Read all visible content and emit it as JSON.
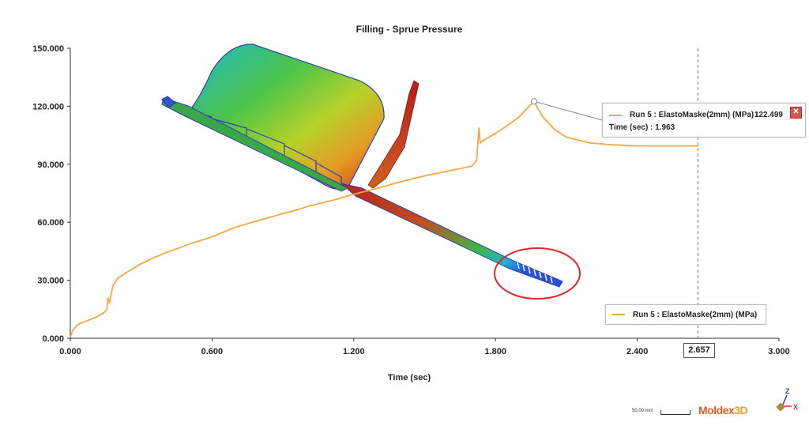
{
  "chart_data": {
    "type": "line",
    "title": "Filling - Sprue Pressure",
    "xlabel": "Time (sec)",
    "ylabel": "",
    "xlim": [
      0,
      3.0
    ],
    "ylim": [
      0,
      150
    ],
    "x_ticks": [
      "0.000",
      "0.600",
      "1.200",
      "1.800",
      "2.400",
      "3.000"
    ],
    "x_tick_values": [
      0,
      0.6,
      1.2,
      1.8,
      2.4,
      3.0
    ],
    "y_ticks": [
      "0.000",
      "30.000",
      "60.000",
      "90.000",
      "120.000",
      "150.000"
    ],
    "y_tick_values": [
      0,
      30,
      60,
      90,
      120,
      150
    ],
    "series": [
      {
        "name": "Run 5 : ElastoMaske(2mm) (MPa)",
        "color": "#f4a742",
        "x": [
          0.0,
          0.01,
          0.03,
          0.05,
          0.08,
          0.11,
          0.14,
          0.155,
          0.16,
          0.165,
          0.18,
          0.2,
          0.25,
          0.3,
          0.35,
          0.4,
          0.5,
          0.55,
          0.6,
          0.7,
          0.8,
          0.9,
          0.95,
          1.0,
          1.1,
          1.2,
          1.3,
          1.4,
          1.5,
          1.6,
          1.7,
          1.72,
          1.73,
          1.735,
          1.745,
          1.8,
          1.85,
          1.9,
          1.963,
          2.0,
          2.05,
          2.1,
          2.2,
          2.3,
          2.4,
          2.5,
          2.6,
          2.657
        ],
        "values": [
          0.5,
          4,
          7,
          8,
          9.5,
          11,
          13,
          15,
          21,
          18,
          27,
          31,
          35,
          38.5,
          41.5,
          44,
          48.5,
          50.5,
          52.5,
          57.5,
          61,
          64.5,
          66,
          68,
          71,
          74.5,
          77.5,
          81,
          84,
          86.5,
          89,
          92,
          109,
          101,
          102,
          106,
          110,
          114.5,
          122.5,
          114.5,
          108,
          104,
          101,
          100,
          99.5,
          99.5,
          99.5,
          99.5
        ]
      }
    ],
    "annotation": {
      "x": 1.963,
      "y": 122.499,
      "series_label": "Run 5 : ElastoMaske(2mm) (MPa) :",
      "value_label": "122.499",
      "time_label": "Time (sec) : 1.963"
    },
    "cursor": {
      "x": 2.657,
      "label": "2.657"
    },
    "legend": {
      "placement": "bottom-right",
      "entry": "Run 5 : ElastoMaske(2mm) (MPa)"
    },
    "grid": false
  },
  "overlay": {
    "scale_label": "50.00 mm",
    "brand_main": "Moldex",
    "brand_suffix": "3D",
    "axis_z": "Z",
    "axis_x": "X"
  },
  "colors": {
    "line": "#f4a742",
    "axis": "#333333",
    "highlight_circle": "#e0272a",
    "runner": "#c8321a"
  }
}
